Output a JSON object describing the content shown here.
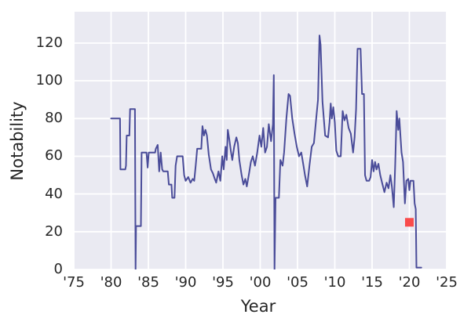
{
  "figure": {
    "xlabel": "Year",
    "ylabel": "Notability"
  },
  "chart_data": {
    "type": "line",
    "title": "",
    "xlabel": "Year",
    "ylabel": "Notability",
    "xlim": [
      1975,
      2025
    ],
    "ylim": [
      0,
      136.6
    ],
    "grid": true,
    "legend_position": "none",
    "xticks": {
      "values": [
        1975,
        1980,
        1985,
        1990,
        1995,
        2000,
        2005,
        2010,
        2015,
        2020,
        2025
      ],
      "labels": [
        "'75",
        "'80",
        "'85",
        "'90",
        "'95",
        "'00",
        "'05",
        "'10",
        "'15",
        "'20",
        "'25"
      ]
    },
    "yticks": {
      "values": [
        0,
        20,
        40,
        60,
        80,
        100,
        120
      ],
      "labels": [
        "0",
        "20",
        "40",
        "60",
        "80",
        "100",
        "120"
      ]
    },
    "style": {
      "plot_background": "#eaeaf2",
      "grid_color": "#ffffff",
      "line_color": "#4a4c99",
      "marker_color": "#f94b4b",
      "text_color": "#262626"
    },
    "series": [
      {
        "name": "Notability",
        "color": "#4a4c99",
        "points": [
          [
            1980.0,
            80
          ],
          [
            1981.2,
            80
          ],
          [
            1981.25,
            53
          ],
          [
            1981.9,
            53
          ],
          [
            1982.0,
            55
          ],
          [
            1982.1,
            71
          ],
          [
            1982.45,
            71
          ],
          [
            1982.55,
            85
          ],
          [
            1983.2,
            85
          ],
          [
            1983.28,
            0
          ],
          [
            1983.35,
            23
          ],
          [
            1984.0,
            23
          ],
          [
            1984.1,
            62
          ],
          [
            1984.75,
            62
          ],
          [
            1984.9,
            54
          ],
          [
            1985.05,
            62
          ],
          [
            1985.9,
            62
          ],
          [
            1986.0,
            64
          ],
          [
            1986.25,
            66
          ],
          [
            1986.45,
            52
          ],
          [
            1986.65,
            62
          ],
          [
            1986.85,
            53
          ],
          [
            1987.0,
            52
          ],
          [
            1987.6,
            52
          ],
          [
            1987.75,
            45
          ],
          [
            1988.1,
            45
          ],
          [
            1988.2,
            38
          ],
          [
            1988.5,
            38
          ],
          [
            1988.65,
            55
          ],
          [
            1988.85,
            60
          ],
          [
            1989.6,
            60
          ],
          [
            1989.8,
            50
          ],
          [
            1990.0,
            47
          ],
          [
            1990.35,
            49
          ],
          [
            1990.65,
            46
          ],
          [
            1990.95,
            48
          ],
          [
            1991.15,
            47
          ],
          [
            1991.35,
            55
          ],
          [
            1991.55,
            64
          ],
          [
            1992.1,
            64
          ],
          [
            1992.25,
            76
          ],
          [
            1992.45,
            71
          ],
          [
            1992.65,
            74
          ],
          [
            1992.85,
            71
          ],
          [
            1993.1,
            61
          ],
          [
            1993.4,
            53
          ],
          [
            1993.65,
            51
          ],
          [
            1993.9,
            48
          ],
          [
            1994.1,
            46
          ],
          [
            1994.4,
            52
          ],
          [
            1994.65,
            47
          ],
          [
            1994.9,
            60
          ],
          [
            1995.1,
            53
          ],
          [
            1995.35,
            65
          ],
          [
            1995.5,
            58
          ],
          [
            1995.65,
            74
          ],
          [
            1995.85,
            69
          ],
          [
            1996.05,
            63
          ],
          [
            1996.25,
            58
          ],
          [
            1996.5,
            65
          ],
          [
            1996.8,
            70
          ],
          [
            1997.0,
            67
          ],
          [
            1997.2,
            58
          ],
          [
            1997.5,
            50
          ],
          [
            1997.75,
            45
          ],
          [
            1998.0,
            48
          ],
          [
            1998.2,
            44
          ],
          [
            1998.5,
            51
          ],
          [
            1998.75,
            57
          ],
          [
            1999.0,
            60
          ],
          [
            1999.3,
            55
          ],
          [
            1999.6,
            62
          ],
          [
            1999.9,
            71
          ],
          [
            2000.15,
            65
          ],
          [
            2000.4,
            75
          ],
          [
            2000.65,
            62
          ],
          [
            2000.9,
            65
          ],
          [
            2001.15,
            77
          ],
          [
            2001.45,
            68
          ],
          [
            2001.7,
            77
          ],
          [
            2001.82,
            103
          ],
          [
            2001.92,
            0
          ],
          [
            2002.05,
            38
          ],
          [
            2002.5,
            38
          ],
          [
            2002.7,
            58
          ],
          [
            2003.0,
            55
          ],
          [
            2003.2,
            62
          ],
          [
            2003.5,
            80
          ],
          [
            2003.8,
            93
          ],
          [
            2004.0,
            92
          ],
          [
            2004.3,
            80
          ],
          [
            2004.6,
            72
          ],
          [
            2004.9,
            65
          ],
          [
            2005.2,
            60
          ],
          [
            2005.5,
            62
          ],
          [
            2005.8,
            55
          ],
          [
            2006.0,
            50
          ],
          [
            2006.3,
            44
          ],
          [
            2006.6,
            55
          ],
          [
            2006.9,
            65
          ],
          [
            2007.2,
            67
          ],
          [
            2007.5,
            80
          ],
          [
            2007.75,
            90
          ],
          [
            2007.95,
            124
          ],
          [
            2008.1,
            119
          ],
          [
            2008.35,
            89
          ],
          [
            2008.7,
            71
          ],
          [
            2009.1,
            70
          ],
          [
            2009.3,
            78
          ],
          [
            2009.45,
            88
          ],
          [
            2009.6,
            80
          ],
          [
            2009.8,
            86
          ],
          [
            2010.0,
            78
          ],
          [
            2010.2,
            63
          ],
          [
            2010.45,
            60
          ],
          [
            2010.8,
            60
          ],
          [
            2011.05,
            84
          ],
          [
            2011.3,
            79
          ],
          [
            2011.55,
            82
          ],
          [
            2011.85,
            75
          ],
          [
            2012.15,
            72
          ],
          [
            2012.45,
            62
          ],
          [
            2012.65,
            70
          ],
          [
            2012.85,
            85
          ],
          [
            2013.05,
            117
          ],
          [
            2013.45,
            117
          ],
          [
            2013.65,
            93
          ],
          [
            2013.9,
            93
          ],
          [
            2014.05,
            50
          ],
          [
            2014.25,
            47
          ],
          [
            2014.6,
            47
          ],
          [
            2014.8,
            49
          ],
          [
            2015.0,
            58
          ],
          [
            2015.2,
            52
          ],
          [
            2015.4,
            57
          ],
          [
            2015.6,
            53
          ],
          [
            2015.85,
            56
          ],
          [
            2016.1,
            50
          ],
          [
            2016.4,
            45
          ],
          [
            2016.65,
            41
          ],
          [
            2016.95,
            46
          ],
          [
            2017.2,
            43
          ],
          [
            2017.45,
            50
          ],
          [
            2017.65,
            44
          ],
          [
            2017.9,
            33
          ],
          [
            2018.1,
            55
          ],
          [
            2018.3,
            84
          ],
          [
            2018.5,
            74
          ],
          [
            2018.65,
            80
          ],
          [
            2018.95,
            62
          ],
          [
            2019.15,
            57
          ],
          [
            2019.4,
            35
          ],
          [
            2019.6,
            47
          ],
          [
            2019.85,
            48
          ],
          [
            2020.0,
            42
          ],
          [
            2020.15,
            47
          ],
          [
            2020.55,
            47
          ],
          [
            2020.7,
            35
          ],
          [
            2020.85,
            32
          ],
          [
            2020.95,
            1
          ],
          [
            2021.6,
            1
          ]
        ]
      }
    ],
    "highlight_marker": {
      "x": 2020,
      "y": 25,
      "shape": "square",
      "color": "#f94b4b"
    }
  }
}
